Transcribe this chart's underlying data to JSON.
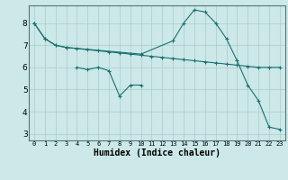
{
  "xlabel": "Humidex (Indice chaleur)",
  "bg_color": "#cce8e8",
  "grid_color": "#aacccc",
  "line_color": "#1a7070",
  "xlim": [
    -0.5,
    23.5
  ],
  "ylim": [
    2.7,
    8.8
  ],
  "yticks": [
    3,
    4,
    5,
    6,
    7,
    8
  ],
  "xticks": [
    0,
    1,
    2,
    3,
    4,
    5,
    6,
    7,
    8,
    9,
    10,
    11,
    12,
    13,
    14,
    15,
    16,
    17,
    18,
    19,
    20,
    21,
    22,
    23
  ],
  "line1_x": [
    0,
    1,
    2,
    3,
    4,
    5,
    6,
    7,
    8,
    9,
    10,
    11,
    12,
    13,
    14,
    15,
    16,
    17,
    18,
    19,
    20,
    21,
    22,
    23
  ],
  "line1_y": [
    8.0,
    7.3,
    7.0,
    6.9,
    6.85,
    6.8,
    6.75,
    6.7,
    6.65,
    6.6,
    6.55,
    6.5,
    6.45,
    6.4,
    6.35,
    6.3,
    6.25,
    6.2,
    6.15,
    6.1,
    6.05,
    6.0,
    6.0,
    6.0
  ],
  "line2_x": [
    0,
    1,
    2,
    3,
    10,
    13,
    14,
    15,
    16,
    17,
    18,
    19,
    20,
    21,
    22,
    23
  ],
  "line2_y": [
    8.0,
    7.3,
    7.0,
    6.9,
    6.6,
    7.2,
    8.0,
    8.6,
    8.5,
    8.0,
    7.3,
    6.3,
    5.2,
    4.5,
    3.3,
    3.2
  ],
  "line3_x": [
    4,
    5,
    6,
    7,
    8,
    9,
    10
  ],
  "line3_y": [
    6.0,
    5.9,
    6.0,
    5.85,
    4.7,
    5.2,
    5.2
  ]
}
